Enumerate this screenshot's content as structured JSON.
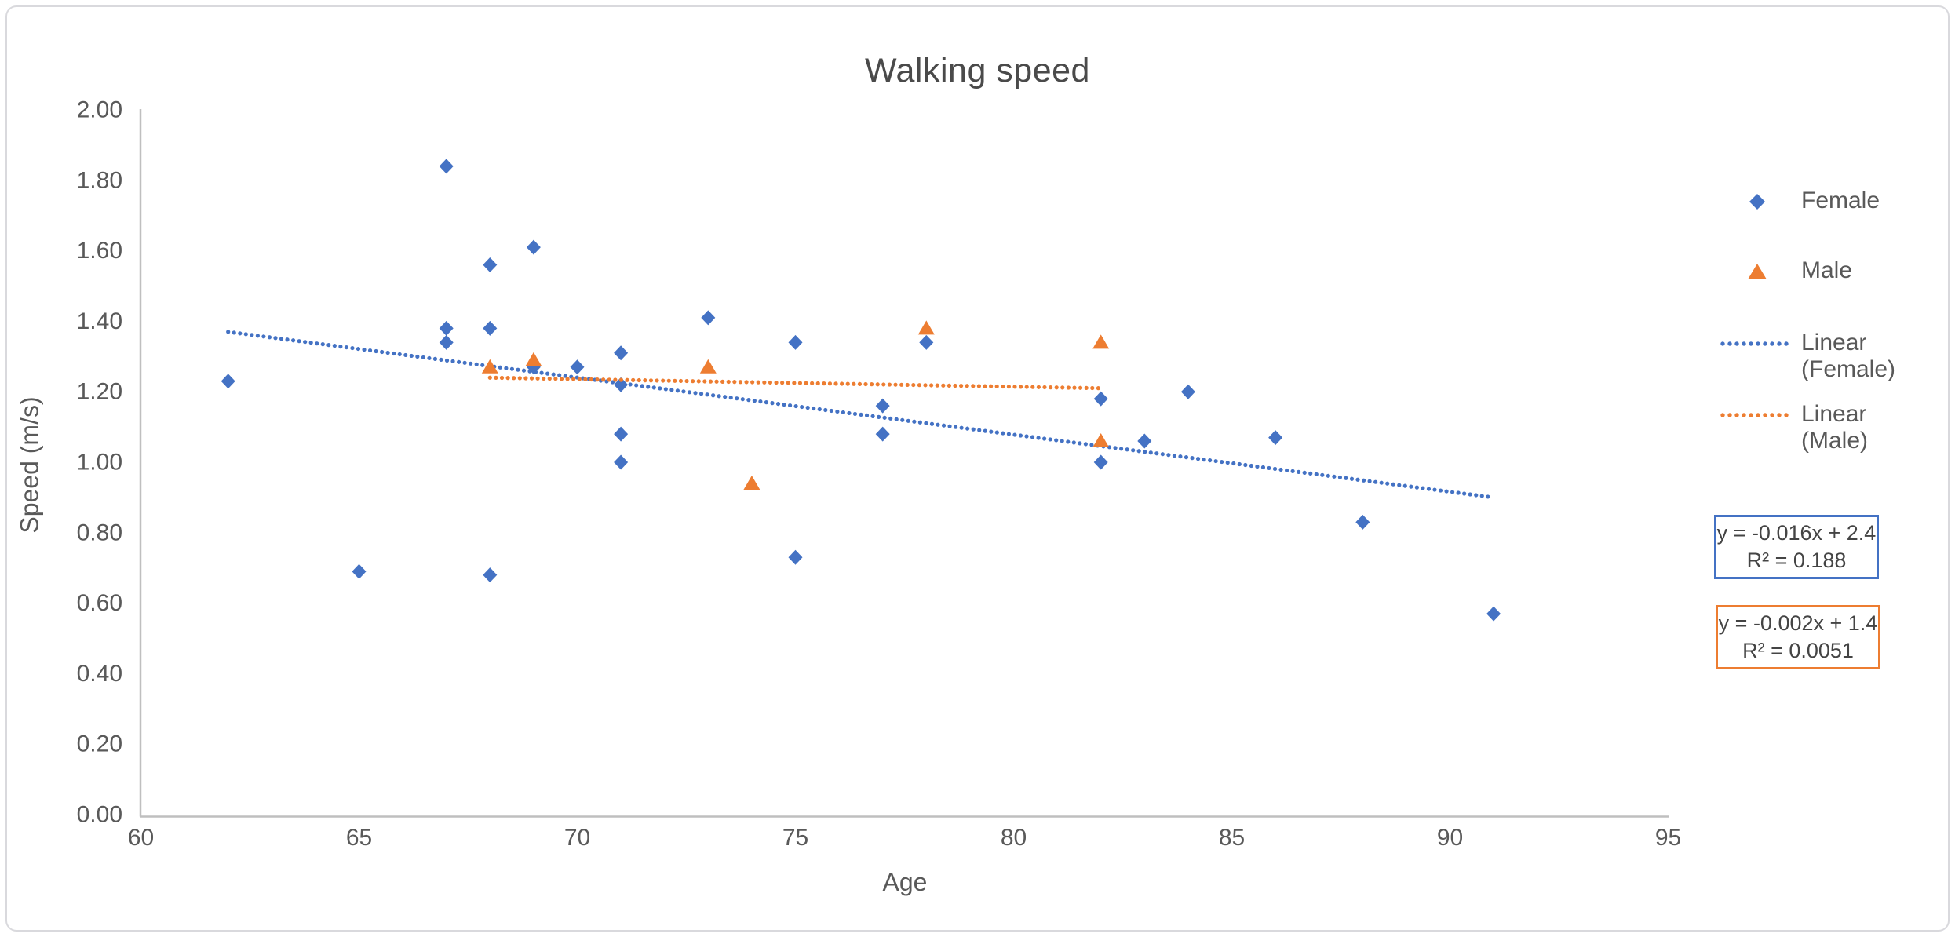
{
  "window": {
    "background": "#ffffff",
    "border_color": "#d9d9dd"
  },
  "chart_data": {
    "type": "scatter",
    "title": "Walking speed",
    "xlabel": "Age",
    "ylabel": "Speed (m/s)",
    "xlim": [
      60,
      95
    ],
    "ylim": [
      0.0,
      2.0
    ],
    "xticks": [
      "60",
      "65",
      "70",
      "75",
      "80",
      "85",
      "90",
      "95"
    ],
    "yticks": [
      "0.00",
      "0.20",
      "0.40",
      "0.60",
      "0.80",
      "1.00",
      "1.20",
      "1.40",
      "1.60",
      "1.80",
      "2.00"
    ],
    "grid": false,
    "legend_position": "right",
    "text_color": "#595959",
    "axis_color": "#bfbfbf",
    "series": [
      {
        "name": "Female",
        "marker": "diamond",
        "color": "#4472C4",
        "points": [
          [
            62,
            1.23
          ],
          [
            65,
            0.69
          ],
          [
            67,
            1.84
          ],
          [
            67,
            1.38
          ],
          [
            67,
            1.34
          ],
          [
            68,
            1.56
          ],
          [
            68,
            1.38
          ],
          [
            68,
            0.68
          ],
          [
            69,
            1.61
          ],
          [
            69,
            1.27
          ],
          [
            70,
            1.27
          ],
          [
            71,
            1.31
          ],
          [
            71,
            1.22
          ],
          [
            71,
            1.08
          ],
          [
            71,
            1.0
          ],
          [
            73,
            1.41
          ],
          [
            75,
            1.34
          ],
          [
            75,
            0.73
          ],
          [
            77,
            1.16
          ],
          [
            77,
            1.08
          ],
          [
            78,
            1.34
          ],
          [
            82,
            1.18
          ],
          [
            82,
            1.0
          ],
          [
            83,
            1.06
          ],
          [
            84,
            1.2
          ],
          [
            86,
            1.07
          ],
          [
            88,
            0.83
          ],
          [
            91,
            0.57
          ]
        ]
      },
      {
        "name": "Male",
        "marker": "triangle",
        "color": "#ED7D31",
        "points": [
          [
            68,
            1.27
          ],
          [
            69,
            1.29
          ],
          [
            73,
            1.27
          ],
          [
            74,
            0.94
          ],
          [
            78,
            1.38
          ],
          [
            82,
            1.34
          ],
          [
            82,
            1.06
          ]
        ]
      }
    ],
    "trendlines": [
      {
        "name": "Linear (Female)",
        "color": "#4472C4",
        "x1": 62,
        "y1": 1.37,
        "x2": 91,
        "y2": 0.9,
        "equation": "y = -0.016x + 2.4",
        "r2": "R² = 0.188"
      },
      {
        "name": "Linear (Male)",
        "color": "#ED7D31",
        "x1": 68,
        "y1": 1.24,
        "x2": 82,
        "y2": 1.21,
        "equation": "y = -0.002x + 1.4",
        "r2": "R² = 0.0051"
      }
    ],
    "legend": [
      {
        "lines": [
          "Female"
        ],
        "marker": "diamond",
        "color": "#4472C4"
      },
      {
        "lines": [
          "Male"
        ],
        "marker": "triangle",
        "color": "#ED7D31"
      },
      {
        "lines": [
          "Linear",
          "(Female)"
        ],
        "marker": "dotted-line",
        "color": "#4472C4"
      },
      {
        "lines": [
          "Linear",
          "(Male)"
        ],
        "marker": "dotted-line",
        "color": "#ED7D31"
      }
    ],
    "equation_boxes": [
      {
        "line1": "y = -0.016x + 2.4",
        "line2": "R² = 0.188",
        "border_color": "#4472C4"
      },
      {
        "line1": "y = -0.002x + 1.4",
        "line2": "R² = 0.0051",
        "border_color": "#ED7D31"
      }
    ]
  }
}
